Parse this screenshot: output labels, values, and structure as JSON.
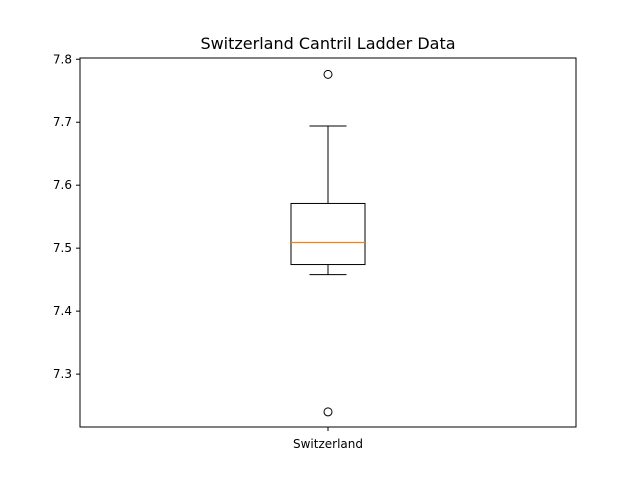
{
  "chart_data": {
    "type": "box",
    "title": "Switzerland Cantril Ladder Data",
    "xlabel": "",
    "ylabel": "",
    "categories": [
      "Switzerland"
    ],
    "ylim": [
      7.216,
      7.802
    ],
    "yticks": [
      7.3,
      7.4,
      7.5,
      7.6,
      7.7,
      7.8
    ],
    "ytick_labels": [
      "7.3",
      "7.4",
      "7.5",
      "7.6",
      "7.7",
      "7.8"
    ],
    "boxes": [
      {
        "category": "Switzerland",
        "whisker_low": 7.458,
        "q1": 7.474,
        "median": 7.509,
        "q3": 7.571,
        "whisker_high": 7.694,
        "outliers": [
          7.776,
          7.24
        ]
      }
    ],
    "grid": false,
    "legend": "none"
  },
  "colors": {
    "median": "#ff7f0e",
    "box": "#000000",
    "axes": "#000000",
    "background": "#ffffff"
  }
}
